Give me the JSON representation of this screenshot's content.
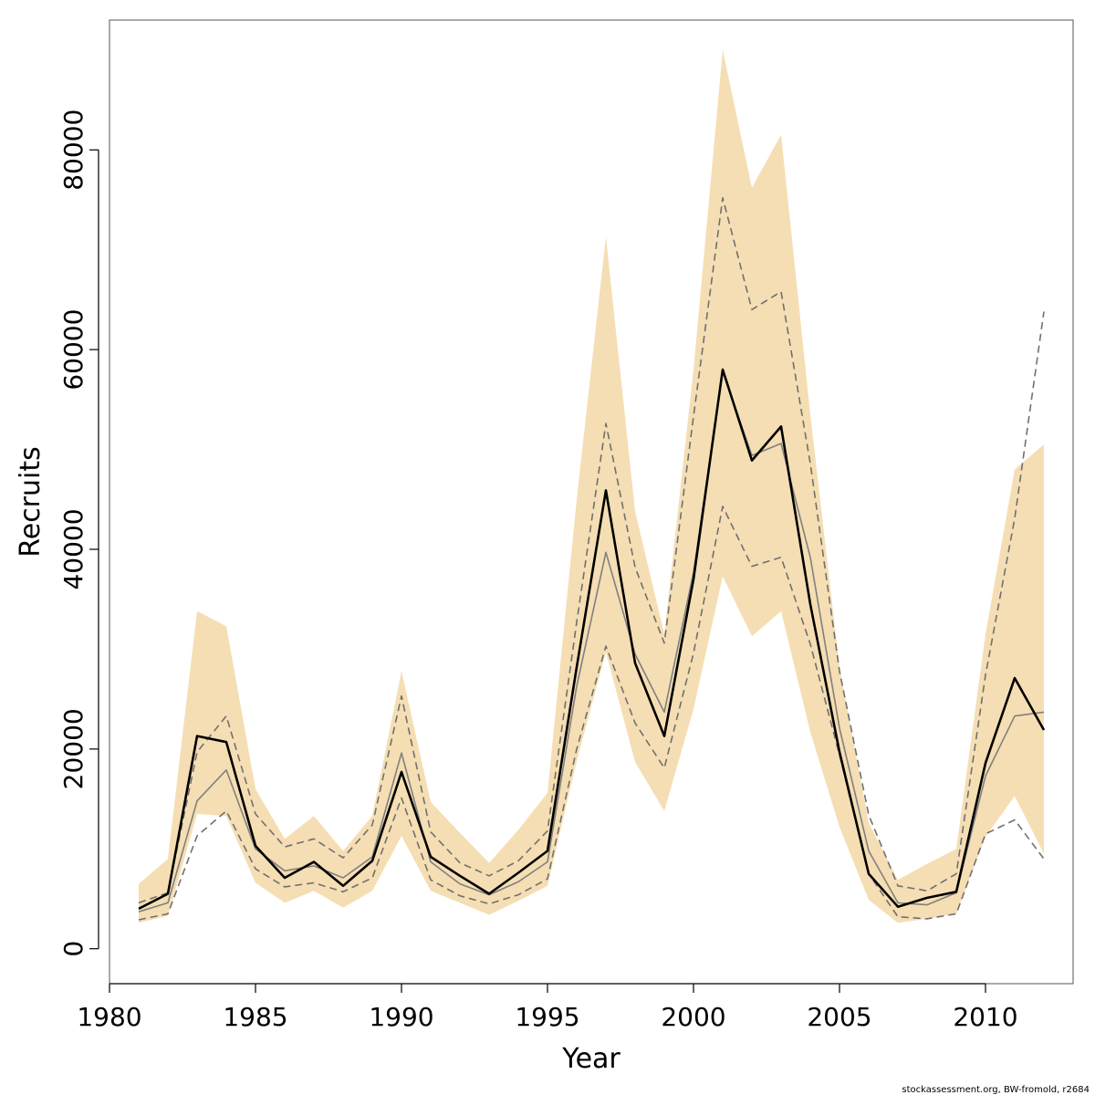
{
  "chart_data": {
    "type": "line",
    "xlabel": "Year",
    "ylabel": "Recruits",
    "xlim": [
      1980,
      2013
    ],
    "ylim": [
      -3500,
      93000
    ],
    "x_ticks": [
      1980,
      1985,
      1990,
      1995,
      2000,
      2005,
      2010
    ],
    "y_ticks": [
      0,
      20000,
      40000,
      60000,
      80000
    ],
    "grid": false,
    "legend": "none",
    "colors": {
      "band": "#f5deb3",
      "main": "#000000",
      "grey": "#808080",
      "dashed": "#707070",
      "frame": "#555555"
    },
    "x": [
      1981,
      1982,
      1983,
      1984,
      1985,
      1986,
      1987,
      1988,
      1989,
      1990,
      1991,
      1992,
      1993,
      1994,
      1995,
      1996,
      1997,
      1998,
      1999,
      2000,
      2001,
      2002,
      2003,
      2004,
      2005,
      2006,
      2007,
      2008,
      2009,
      2010,
      2011,
      2012
    ],
    "band": {
      "upper": [
        6500,
        9000,
        33800,
        32300,
        16000,
        11000,
        13300,
        9800,
        13300,
        27800,
        14700,
        11600,
        8600,
        11900,
        15600,
        45000,
        71300,
        43800,
        31500,
        58000,
        90000,
        76200,
        81500,
        53500,
        28200,
        12600,
        6900,
        8500,
        10000,
        31500,
        48000,
        50500
      ],
      "lower": [
        2600,
        3300,
        13500,
        13300,
        6600,
        4600,
        5800,
        4100,
        5800,
        11300,
        5800,
        4600,
        3400,
        4800,
        6300,
        18800,
        29700,
        18700,
        13800,
        24000,
        37300,
        31300,
        33800,
        21700,
        12200,
        4900,
        2600,
        3000,
        3500,
        11200,
        15300,
        9500
      ]
    },
    "series": [
      {
        "style": "solid-thick",
        "values": [
          4000,
          5500,
          21300,
          20700,
          10300,
          7100,
          8700,
          6300,
          8800,
          17700,
          9200,
          7300,
          5500,
          7600,
          9800,
          28200,
          45900,
          28600,
          21300,
          37000,
          58000,
          48900,
          52300,
          34500,
          19700,
          7500,
          4200,
          5100,
          5700,
          18600,
          27100,
          21900
        ]
      },
      {
        "style": "solid-grey",
        "values": [
          3700,
          4600,
          14800,
          17900,
          10000,
          7800,
          8300,
          7100,
          9200,
          19600,
          8700,
          6500,
          5400,
          6700,
          8700,
          26300,
          39700,
          29500,
          23700,
          37700,
          57800,
          49400,
          50600,
          39200,
          22100,
          9800,
          4600,
          4400,
          5600,
          17300,
          23300,
          23700
        ]
      },
      {
        "style": "dashed",
        "values": [
          4600,
          5600,
          19700,
          23300,
          13500,
          10200,
          11000,
          9100,
          12400,
          25300,
          11700,
          8600,
          7300,
          8800,
          11800,
          32700,
          52600,
          38200,
          30600,
          53300,
          75200,
          64000,
          65800,
          48600,
          27800,
          13400,
          6300,
          5800,
          7500,
          27400,
          43100,
          63800
        ]
      },
      {
        "style": "dashed",
        "values": [
          2900,
          3500,
          11300,
          13800,
          8000,
          6200,
          6600,
          5700,
          7100,
          15100,
          6900,
          5300,
          4500,
          5400,
          7000,
          20000,
          30300,
          22600,
          18100,
          29600,
          44300,
          38300,
          39200,
          30500,
          19400,
          7500,
          3200,
          3000,
          3500,
          11500,
          12900,
          9000
        ]
      }
    ]
  },
  "footer": {
    "credit": "stockassessment.org, BW-fromold, r2684"
  }
}
